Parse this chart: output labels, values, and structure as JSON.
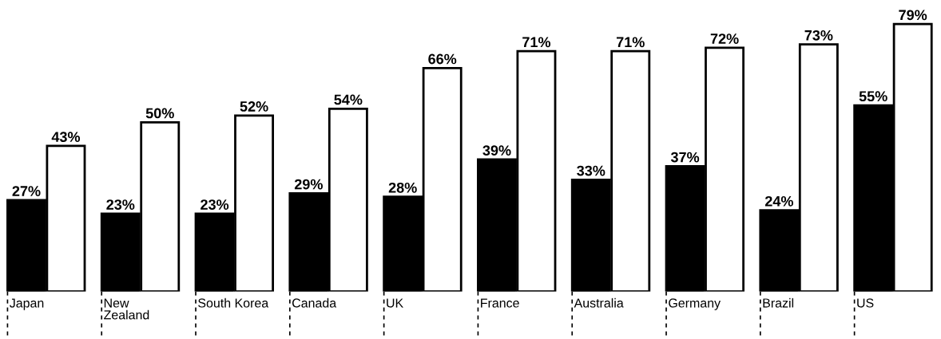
{
  "chart_data": {
    "type": "bar",
    "categories": [
      "Japan",
      "New\nZealand",
      "South Korea",
      "Canada",
      "UK",
      "France",
      "Australia",
      "Germany",
      "Brazil",
      "US"
    ],
    "series": [
      {
        "color": "#000000",
        "values": [
          27,
          23,
          23,
          29,
          28,
          39,
          33,
          37,
          24,
          55
        ],
        "value_labels": [
          "27%",
          "23%",
          "23%",
          "29%",
          "28%",
          "39%",
          "33%",
          "37%",
          "24%",
          "55%"
        ]
      },
      {
        "color": "#ffffff",
        "values": [
          43,
          50,
          52,
          54,
          66,
          71,
          71,
          72,
          73,
          79
        ],
        "value_labels": [
          "43%",
          "50%",
          "52%",
          "54%",
          "66%",
          "71%",
          "71%",
          "72%",
          "73%",
          "79%"
        ]
      }
    ]
  }
}
